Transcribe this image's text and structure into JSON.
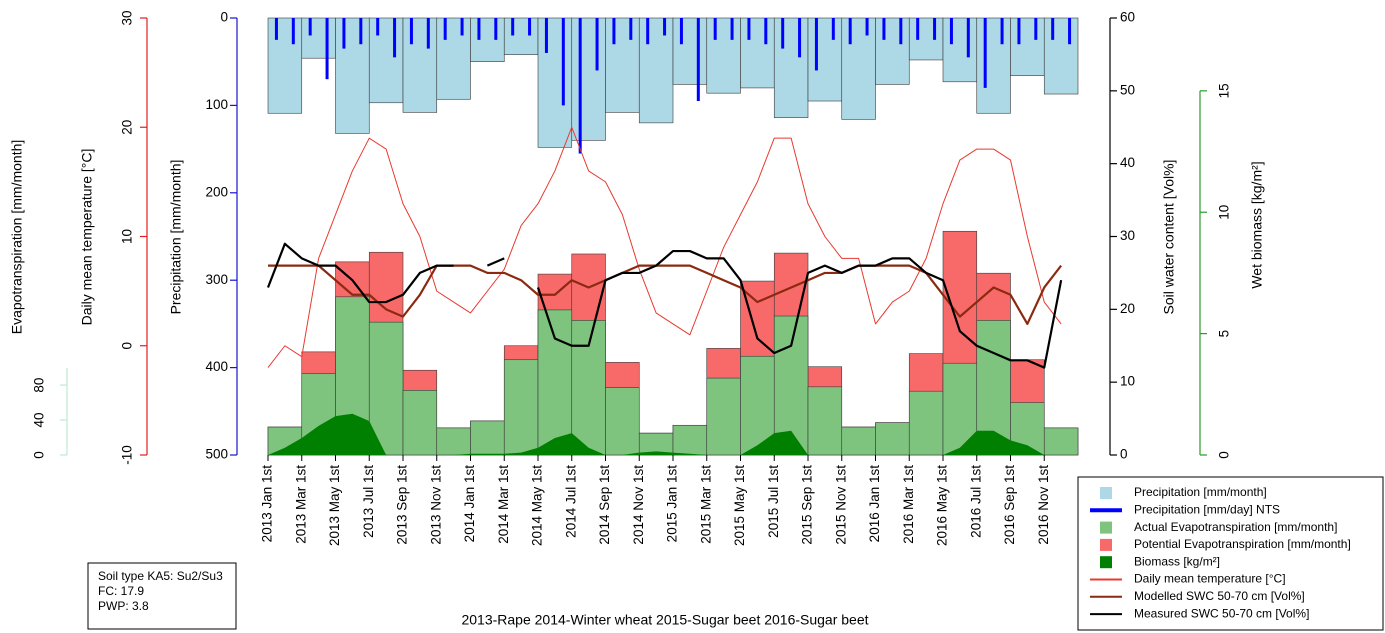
{
  "chart_data": {
    "type": "bar",
    "categories": [
      "2013 Jan 1st",
      "2013 Mar 1st",
      "2013 May 1st",
      "2013 Jul 1st",
      "2013 Sep 1st",
      "2013 Nov 1st",
      "2014 Jan 1st",
      "2014 Mar 1st",
      "2014 May 1st",
      "2014 Jul 1st",
      "2014 Sep 1st",
      "2014 Nov 1st",
      "2015 Jan 1st",
      "2015 Mar 1st",
      "2015 May 1st",
      "2015 Jul 1st",
      "2015 Sep 1st",
      "2015 Nov 1st",
      "2016 Jan 1st",
      "2016 Mar 1st",
      "2016 May 1st",
      "2016 Jul 1st",
      "2016 Sep 1st",
      "2016 Nov 1st"
    ],
    "x": [
      "2013-01",
      "2013-02",
      "2013-03",
      "2013-04",
      "2013-05",
      "2013-06",
      "2013-07",
      "2013-08",
      "2013-09",
      "2013-10",
      "2013-11",
      "2013-12",
      "2014-01",
      "2014-02",
      "2014-03",
      "2014-04",
      "2014-05",
      "2014-06",
      "2014-07",
      "2014-08",
      "2014-09",
      "2014-10",
      "2014-11",
      "2014-12",
      "2015-01",
      "2015-02",
      "2015-03",
      "2015-04",
      "2015-05",
      "2015-06",
      "2015-07",
      "2015-08",
      "2015-09",
      "2015-10",
      "2015-11",
      "2015-12",
      "2016-01",
      "2016-02",
      "2016-03",
      "2016-04",
      "2016-05",
      "2016-06",
      "2016-07",
      "2016-08",
      "2016-09",
      "2016-10",
      "2016-11",
      "2016-12"
    ],
    "axes": {
      "evapotranspiration": {
        "label": "Evapotranspiration [mm/month]",
        "color": "#3aa845",
        "axis_color": "#bfe8d2",
        "lim": [
          0,
          500
        ],
        "ticks": [
          0,
          40,
          80
        ]
      },
      "temperature": {
        "label": "Daily mean temperature [°C]",
        "color": "#e02020",
        "axis_color": "#e02020",
        "lim": [
          -10,
          30
        ],
        "ticks": [
          -10,
          0,
          10,
          20,
          30
        ]
      },
      "precipitation": {
        "label": "Precipitation [mm/month]",
        "color": "#1515d0",
        "axis_color": "#1515d0",
        "lim": [
          500,
          0
        ],
        "ticks": [
          0,
          100,
          200,
          300,
          400,
          500
        ]
      },
      "soil_water": {
        "label": "Soil water content [Vol%]",
        "color": "#000000",
        "axis_color": "#000000",
        "lim": [
          0,
          60
        ],
        "ticks": [
          0,
          10,
          20,
          30,
          40,
          50,
          60
        ]
      },
      "biomass": {
        "label": "Wet biomass [kg/m²]",
        "color": "#2c9a2c",
        "axis_color": "#2c9a2c",
        "lim": [
          0,
          18
        ],
        "ticks": [
          0,
          5,
          10,
          15
        ]
      }
    },
    "series": [
      {
        "name": "Precipitation [mm/month]",
        "type": "bar",
        "axis": "precipitation",
        "color": "#add8e6",
        "values": [
          109,
          46,
          132,
          97,
          108,
          93,
          50,
          42,
          148,
          140,
          108,
          120,
          76,
          86,
          80,
          114,
          95,
          116,
          76,
          48,
          73,
          109,
          66,
          87
        ]
      },
      {
        "name": "Precipitation [mm/day] NTS",
        "type": "spike",
        "axis": "precipitation",
        "color": "#0000ff",
        "values": [
          25,
          30,
          20,
          70,
          35,
          30,
          20,
          45,
          30,
          35,
          25,
          20,
          25,
          25,
          20,
          20,
          40,
          100,
          155,
          60,
          30,
          25,
          30,
          20,
          30,
          95,
          25,
          25,
          25,
          30,
          35,
          45,
          60,
          25,
          30,
          20,
          25,
          30,
          25,
          25,
          30,
          45,
          80,
          30,
          30,
          25,
          25,
          30
        ]
      },
      {
        "name": "Actual Evapotranspiration [mm/month]",
        "type": "bar",
        "axis": "evapotranspiration",
        "color": "#7ec47e",
        "values": [
          32,
          93,
          181,
          152,
          74,
          31,
          39,
          109,
          166,
          154,
          77,
          25,
          34,
          88,
          113,
          159,
          78,
          32,
          37,
          73,
          105,
          154,
          60,
          31
        ]
      },
      {
        "name": "Potential Evapotranspiration [mm/month]",
        "type": "bar",
        "axis": "evapotranspiration",
        "color": "#f86a6a",
        "values": [
          32,
          118,
          221,
          232,
          97,
          31,
          39,
          125,
          207,
          230,
          106,
          25,
          34,
          122,
          199,
          231,
          101,
          32,
          37,
          116,
          256,
          208,
          109,
          31
        ]
      },
      {
        "name": "Biomass [kg/m²]",
        "type": "area",
        "axis": "biomass",
        "color": "#008000",
        "values": [
          0,
          0.3,
          0.7,
          1.2,
          1.6,
          1.7,
          1.4,
          0,
          0,
          0,
          0,
          0,
          0.05,
          0.05,
          0.05,
          0.1,
          0.3,
          0.7,
          0.9,
          0.3,
          0,
          0,
          0.1,
          0.15,
          0.1,
          0.05,
          0,
          0,
          0,
          0.4,
          0.9,
          1.0,
          0,
          0,
          0,
          0,
          0,
          0,
          0,
          0,
          0,
          0.3,
          1.0,
          1.0,
          0.6,
          0.4,
          0,
          0
        ]
      },
      {
        "name": "Daily mean temperature [°C]",
        "type": "line",
        "axis": "temperature",
        "color": "#e8392f",
        "values": [
          -2,
          0,
          -1,
          8,
          12,
          16,
          19,
          18,
          13,
          10,
          5,
          4,
          3,
          5,
          7,
          11,
          13,
          16,
          20,
          16,
          15,
          12,
          7,
          3,
          2,
          1,
          5,
          9,
          12,
          15,
          19,
          19,
          13,
          10,
          8,
          8,
          2,
          4,
          5,
          8,
          13,
          17,
          18,
          18,
          17,
          10,
          4,
          2
        ]
      },
      {
        "name": "Modelled SWC 50-70 cm [Vol%]",
        "type": "line",
        "axis": "soil_water",
        "color": "#8b2a10",
        "values": [
          26,
          26,
          26,
          26,
          24,
          22,
          22,
          20,
          19,
          22,
          26,
          26,
          26,
          25,
          25,
          24,
          22,
          22,
          24,
          23,
          24,
          25,
          26,
          26,
          26,
          26,
          25,
          24,
          23,
          21,
          22,
          23,
          24,
          25,
          25,
          26,
          26,
          26,
          26,
          25,
          22,
          19,
          21,
          23,
          22,
          18,
          23,
          26
        ]
      },
      {
        "name": "Measured SWC 50-70 cm [Vol%]",
        "type": "line",
        "axis": "soil_water",
        "color": "#000000",
        "values": [
          23,
          29,
          27,
          26,
          26,
          24,
          21,
          21,
          22,
          25,
          26,
          26,
          null,
          26,
          27,
          null,
          23,
          16,
          15,
          15,
          24,
          25,
          25,
          26,
          28,
          28,
          27,
          27,
          24,
          16,
          14,
          15,
          25,
          26,
          25,
          26,
          26,
          27,
          27,
          25,
          24,
          17,
          15,
          14,
          13,
          13,
          12,
          24
        ]
      }
    ],
    "notes": [
      "Soil type KA5: Su2/Su3",
      "FC: 17.9",
      "PWP: 3.8"
    ],
    "caption": "2013-Rape  2014-Winter wheat  2015-Sugar beet  2016-Sugar beet"
  }
}
